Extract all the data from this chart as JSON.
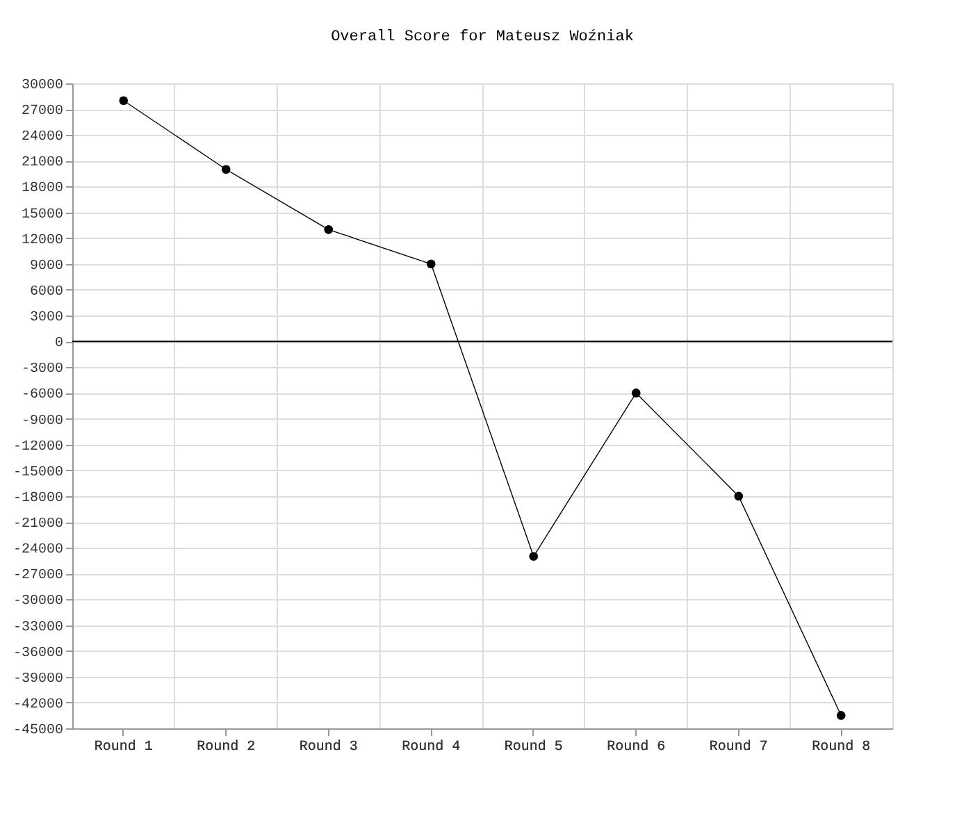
{
  "chart_data": {
    "type": "line",
    "title": "Overall Score for Mateusz Woźniak",
    "categories": [
      "Round 1",
      "Round 2",
      "Round 3",
      "Round 4",
      "Round 5",
      "Round 6",
      "Round 7",
      "Round 8"
    ],
    "series": [
      {
        "color": "#000000",
        "values": [
          28000,
          20000,
          13000,
          9000,
          -25000,
          -6000,
          -18000,
          -43500
        ]
      }
    ],
    "ylim": [
      -45000,
      30000
    ],
    "yticks": [
      -45000,
      -42000,
      -39000,
      -36000,
      -33000,
      -30000,
      -27000,
      -24000,
      -21000,
      -18000,
      -15000,
      -12000,
      -9000,
      -6000,
      -3000,
      0,
      3000,
      6000,
      9000,
      12000,
      15000,
      18000,
      21000,
      24000,
      27000,
      30000
    ],
    "grid": true,
    "marker": "circle",
    "ref_lines": [
      {
        "axis": "y",
        "value": 0,
        "color": "#000000"
      }
    ]
  }
}
